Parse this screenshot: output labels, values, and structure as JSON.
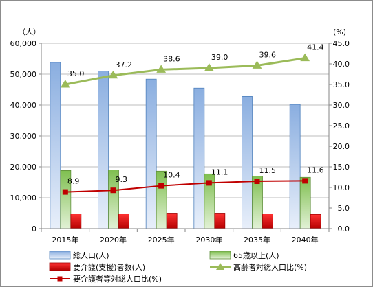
{
  "chart_data": {
    "type": "bar",
    "categories": [
      "2015年",
      "2020年",
      "2025年",
      "2030年",
      "2035年",
      "2040年"
    ],
    "left_axis": {
      "unit_label": "（人）",
      "ylim": [
        0,
        60000
      ],
      "ticks": [
        "0",
        "10,000",
        "20,000",
        "30,000",
        "40,000",
        "50,000",
        "60,000"
      ],
      "tick_values": [
        0,
        10000,
        20000,
        30000,
        40000,
        50000,
        60000
      ]
    },
    "right_axis": {
      "unit_label": "(%)",
      "ylim": [
        0,
        45
      ],
      "ticks": [
        "0.0",
        "5.0",
        "10.0",
        "15.0",
        "20.0",
        "25.0",
        "30.0",
        "35.0",
        "40.0",
        "45.0"
      ],
      "tick_values": [
        0,
        5,
        10,
        15,
        20,
        25,
        30,
        35,
        40,
        45
      ]
    },
    "bar_series": [
      {
        "name": "総人口(人)",
        "values": [
          53800,
          51000,
          48400,
          45500,
          42800,
          40200
        ],
        "color": "#9bb7e3"
      },
      {
        "name": "65歳以上(人)",
        "values": [
          18800,
          19000,
          18600,
          17700,
          17000,
          16600
        ],
        "color": "#92c96b"
      },
      {
        "name": "要介護(支援)者数(人)",
        "values": [
          4800,
          4800,
          5000,
          5000,
          4800,
          4600
        ],
        "color": "#e8292b"
      }
    ],
    "line_series": [
      {
        "name": "高齢者対総人口比(%)",
        "values": [
          35.0,
          37.2,
          38.6,
          39.0,
          39.6,
          41.4
        ],
        "labels": [
          "35.0",
          "37.2",
          "38.6",
          "39.0",
          "39.6",
          "41.4"
        ],
        "color": "#9bbb59",
        "marker": "triangle"
      },
      {
        "name": "要介護者等対総人口比(%)",
        "values": [
          8.9,
          9.3,
          10.4,
          11.1,
          11.5,
          11.6
        ],
        "labels": [
          "8.9",
          "9.3",
          "10.4",
          "11.1",
          "11.5",
          "11.6"
        ],
        "color": "#c00000",
        "marker": "square"
      }
    ],
    "gridlines": true,
    "legend_position": "bottom"
  }
}
